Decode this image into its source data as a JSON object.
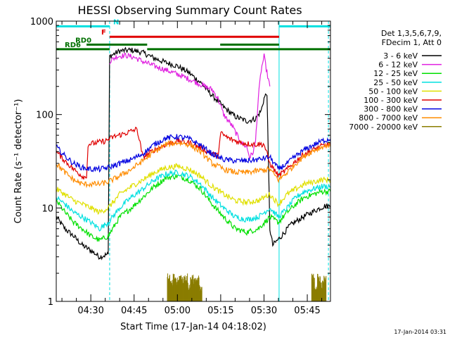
{
  "chart_data": {
    "type": "line",
    "title": "HESSI Observing Summary Count Rates",
    "xlabel": "Start Time (17-Jan-14 04:18:02)",
    "ylabel": "Count Rate (s⁻¹ detector⁻¹)",
    "y_scale": "log",
    "ylim": [
      1,
      1000
    ],
    "x_unit": "minutes after 04:18:02",
    "xlim": [
      0,
      95
    ],
    "x_ticks": [
      {
        "label": "04:30",
        "x": 11.97
      },
      {
        "label": "04:45",
        "x": 26.97
      },
      {
        "label": "05:00",
        "x": 41.97
      },
      {
        "label": "05:15",
        "x": 56.97
      },
      {
        "label": "05:30",
        "x": 71.97
      },
      {
        "label": "05:45",
        "x": 86.97
      }
    ],
    "y_ticks": [
      {
        "label": "1",
        "y": 1
      },
      {
        "label": "10",
        "y": 10
      },
      {
        "label": "100",
        "y": 100
      },
      {
        "label": "1000",
        "y": 1000
      }
    ],
    "legend_header": [
      "Det 1,3,5,6,7,9,",
      "FDecim 1, Att 0"
    ],
    "legend_placement": "right",
    "timestamp": "17-Jan-2014 03:31",
    "series": [
      {
        "name": "3 - 6 keV",
        "color": "#000000",
        "x": [
          0,
          3,
          6,
          9,
          12,
          15,
          18,
          18.5,
          22,
          26,
          30,
          34,
          38,
          42,
          46,
          50,
          54,
          58,
          62,
          66,
          69,
          71,
          72,
          73,
          74,
          75,
          78,
          81,
          84,
          87,
          90,
          93,
          95
        ],
        "y": [
          8,
          6,
          5,
          4,
          3.5,
          3,
          3.2,
          420,
          480,
          490,
          460,
          400,
          360,
          330,
          280,
          220,
          160,
          120,
          95,
          85,
          90,
          110,
          150,
          170,
          6,
          4,
          5,
          6.5,
          7.5,
          8.5,
          9.5,
          10.5,
          10.5
        ]
      },
      {
        "name": "6 - 12 keV",
        "color": "#e020e0",
        "x": [
          18.5,
          21,
          24,
          27,
          30,
          34,
          38,
          42,
          46,
          50,
          54,
          56,
          58,
          61,
          64,
          66,
          67,
          68,
          69,
          70,
          71,
          72,
          73,
          74
        ],
        "y": [
          370,
          420,
          430,
          410,
          370,
          330,
          300,
          270,
          240,
          210,
          185,
          150,
          100,
          75,
          50,
          45,
          35,
          38,
          50,
          150,
          300,
          420,
          280,
          200
        ]
      },
      {
        "name": "12 - 25 keV",
        "color": "#00e000",
        "x": [
          0,
          3,
          6,
          9,
          12,
          15,
          18,
          22,
          26,
          30,
          34,
          38,
          42,
          46,
          50,
          54,
          58,
          62,
          66,
          70,
          74,
          77,
          80,
          83,
          86,
          89,
          92,
          95
        ],
        "y": [
          12,
          9,
          7,
          6,
          5,
          4.5,
          5,
          8,
          10,
          13,
          17,
          21,
          22,
          20,
          16,
          11,
          8,
          6,
          5.5,
          6,
          8,
          7,
          9,
          11,
          13,
          14,
          15,
          15
        ]
      },
      {
        "name": "25 - 50 keV",
        "color": "#00e0e0",
        "x": [
          0,
          3,
          6,
          9,
          12,
          15,
          18,
          22,
          26,
          30,
          34,
          38,
          42,
          46,
          50,
          54,
          58,
          62,
          66,
          70,
          74,
          77,
          80,
          83,
          86,
          89,
          92,
          95
        ],
        "y": [
          13,
          11,
          9,
          8,
          7,
          6,
          7,
          10,
          13,
          16,
          20,
          23,
          24,
          22,
          18,
          13,
          10,
          8,
          7.5,
          8,
          10,
          8,
          10,
          13,
          15,
          16,
          17,
          17
        ]
      },
      {
        "name": "50 - 100 keV",
        "color": "#e0e000",
        "x": [
          0,
          3,
          6,
          9,
          12,
          15,
          18,
          22,
          26,
          30,
          34,
          38,
          42,
          46,
          50,
          54,
          58,
          62,
          66,
          70,
          74,
          77,
          80,
          83,
          86,
          89,
          92,
          95
        ],
        "y": [
          16,
          14,
          12,
          11,
          10,
          9,
          10,
          14,
          17,
          20,
          24,
          27,
          28,
          26,
          22,
          17,
          14,
          12,
          11.5,
          12,
          14,
          11,
          14,
          16,
          18,
          19,
          20,
          20
        ]
      },
      {
        "name": "100 - 300 keV",
        "color": "#e00000",
        "x": [
          0,
          3,
          6,
          9,
          10.5,
          11,
          14,
          17,
          18.5,
          20,
          24,
          28,
          30,
          32,
          34,
          38,
          42,
          46,
          50,
          54,
          56,
          57,
          60,
          64,
          68,
          72,
          74,
          77,
          80,
          83,
          86,
          89,
          92,
          95
        ],
        "y": [
          40,
          32,
          26,
          22,
          21,
          48,
          50,
          52,
          55,
          58,
          63,
          70,
          35,
          38,
          42,
          48,
          52,
          50,
          44,
          38,
          36,
          63,
          55,
          50,
          48,
          48,
          30,
          22,
          26,
          32,
          38,
          42,
          46,
          48
        ]
      },
      {
        "name": "300 - 800 keV",
        "color": "#0000e0",
        "x": [
          0,
          3,
          6,
          9,
          12,
          15,
          18,
          22,
          26,
          30,
          34,
          38,
          42,
          46,
          50,
          54,
          58,
          62,
          66,
          70,
          74,
          77,
          80,
          83,
          86,
          89,
          92,
          95
        ],
        "y": [
          45,
          36,
          30,
          27,
          26,
          26,
          27,
          30,
          33,
          38,
          48,
          56,
          58,
          55,
          47,
          38,
          33,
          32,
          32,
          33,
          35,
          26,
          30,
          36,
          42,
          47,
          52,
          55
        ]
      },
      {
        "name": "800 - 7000 keV",
        "color": "#ff8c00",
        "x": [
          0,
          3,
          6,
          9,
          12,
          15,
          18,
          22,
          26,
          30,
          34,
          38,
          42,
          46,
          50,
          54,
          58,
          62,
          66,
          70,
          74,
          77,
          80,
          83,
          86,
          89,
          92,
          95
        ],
        "y": [
          30,
          24,
          20,
          18,
          18,
          18,
          19,
          22,
          26,
          32,
          40,
          48,
          50,
          48,
          40,
          30,
          26,
          24,
          24,
          25,
          26,
          20,
          24,
          30,
          36,
          41,
          45,
          48
        ]
      },
      {
        "name": "7000 - 20000 keV",
        "color": "#8b7d00",
        "x": [
          38.5,
          39.5,
          40.5,
          41.5,
          42.5,
          43.5,
          44.5,
          45.5,
          46.5,
          47.5,
          48.5,
          49.5,
          50.5,
          88.5,
          89.5,
          90.5,
          91.5,
          92.5,
          93.5
        ],
        "y": [
          2,
          1.7,
          2,
          1.8,
          2,
          1.9,
          2,
          1.6,
          2,
          1.8,
          1.9,
          1.5,
          1.7,
          2,
          1.6,
          2,
          1.7,
          1.9,
          1.4
        ]
      }
    ],
    "flags": [
      {
        "label": "N",
        "color": "#00e0e0",
        "level": 880,
        "segments": [
          [
            0,
            18.5
          ],
          [
            77.2,
            95
          ]
        ]
      },
      {
        "label": "F",
        "color": "#e00000",
        "level": 680,
        "segments": [
          [
            18.5,
            77.2
          ]
        ]
      },
      {
        "label": "RD0",
        "color": "#007000",
        "level": 560,
        "segments": [
          [
            10.5,
            31.5
          ],
          [
            56.8,
            77.2
          ]
        ]
      },
      {
        "label": "RD6",
        "color": "#007000",
        "level": 500,
        "segments": [
          [
            0,
            18.5
          ],
          [
            31.5,
            95
          ]
        ]
      }
    ],
    "vertical_markers": [
      {
        "x": 0,
        "color": "#00e0e0",
        "style": "solid"
      },
      {
        "x": 18.5,
        "color": "#00e0e0",
        "style": "dashed"
      },
      {
        "x": 77.2,
        "color": "#00e0e0",
        "style": "solid"
      },
      {
        "x": 94.3,
        "color": "#00e0e0",
        "style": "dashed"
      }
    ]
  }
}
